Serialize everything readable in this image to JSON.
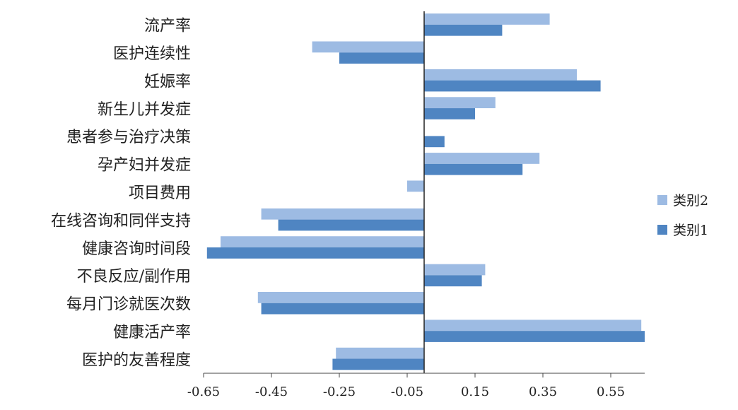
{
  "chart_data": {
    "type": "bar",
    "orientation": "horizontal",
    "categories": [
      "流产率",
      "医护连续性",
      "妊娠率",
      "新生儿并发症",
      "患者参与治疗决策",
      "孕产妇并发症",
      "项目费用",
      "在线咨询和同伴支持",
      "健康咨询时间段",
      "不良反应/副作用",
      "每月门诊就医次数",
      "健康活产率",
      "医护的友善程度"
    ],
    "series": [
      {
        "name": "类别2",
        "color": "#9dbbe3",
        "values": [
          0.37,
          -0.33,
          0.45,
          0.21,
          0.0,
          0.34,
          -0.05,
          -0.48,
          -0.6,
          0.18,
          -0.49,
          0.64,
          -0.26
        ]
      },
      {
        "name": "类别1",
        "color": "#4f85c2",
        "values": [
          0.23,
          -0.25,
          0.52,
          0.15,
          0.06,
          0.29,
          0.0,
          -0.43,
          -0.64,
          0.17,
          -0.48,
          0.65,
          -0.27
        ]
      }
    ],
    "xlim": [
      -0.65,
      0.65
    ],
    "xticks": [
      "-0.65",
      "-0.45",
      "-0.25",
      "-0.05",
      "0.15",
      "0.35",
      "0.55"
    ],
    "xtick_values": [
      -0.65,
      -0.45,
      -0.25,
      -0.05,
      0.15,
      0.35,
      0.55
    ],
    "legend_position": "right",
    "grid": false,
    "title": "",
    "xlabel": "",
    "ylabel": ""
  }
}
